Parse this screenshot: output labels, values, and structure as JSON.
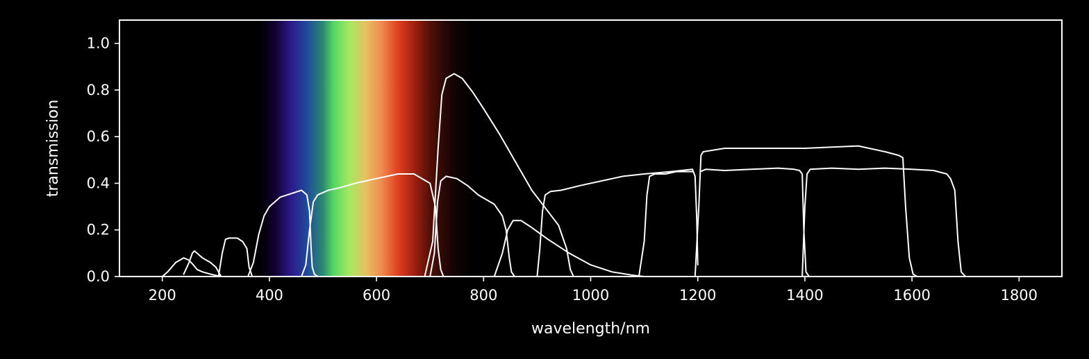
{
  "chart_data": {
    "type": "line",
    "title": "",
    "xlabel": "wavelength/nm",
    "ylabel": "transmission",
    "xlim": [
      120,
      1880
    ],
    "ylim": [
      0.0,
      1.1
    ],
    "xticks": [
      200,
      400,
      600,
      800,
      1000,
      1200,
      1400,
      1600,
      1800
    ],
    "yticks": [
      0.0,
      0.2,
      0.4,
      0.6,
      0.8,
      1.0
    ],
    "grid": false,
    "background": "#000000",
    "line_color": "#ffffff",
    "spectrum_band": {
      "range": [
        380,
        780
      ],
      "stops": [
        {
          "wl": 380,
          "color": "#000000"
        },
        {
          "wl": 410,
          "color": "#120030"
        },
        {
          "wl": 440,
          "color": "#2a1a8a"
        },
        {
          "wl": 470,
          "color": "#1f4a9a"
        },
        {
          "wl": 500,
          "color": "#2a8a70"
        },
        {
          "wl": 520,
          "color": "#55d860"
        },
        {
          "wl": 550,
          "color": "#a8e860"
        },
        {
          "wl": 580,
          "color": "#e8c060"
        },
        {
          "wl": 610,
          "color": "#f08a50"
        },
        {
          "wl": 640,
          "color": "#e04020"
        },
        {
          "wl": 670,
          "color": "#a02010"
        },
        {
          "wl": 700,
          "color": "#501008"
        },
        {
          "wl": 740,
          "color": "#150404"
        },
        {
          "wl": 780,
          "color": "#000000"
        }
      ]
    },
    "series": [
      {
        "x": [
          200,
          210,
          225,
          240,
          250,
          258,
          265,
          275,
          290,
          300,
          305,
          310
        ],
        "y": [
          0.0,
          0.02,
          0.06,
          0.08,
          0.07,
          0.05,
          0.03,
          0.02,
          0.01,
          0.005,
          0.002,
          0.0
        ]
      },
      {
        "x": [
          240,
          250,
          256,
          260,
          265,
          275,
          290,
          300,
          305,
          310
        ],
        "y": [
          0.01,
          0.06,
          0.1,
          0.11,
          0.1,
          0.08,
          0.06,
          0.04,
          0.02,
          0.0
        ]
      },
      {
        "x": [
          305,
          312,
          318,
          325,
          340,
          350,
          358,
          362,
          368
        ],
        "y": [
          0.0,
          0.1,
          0.16,
          0.165,
          0.165,
          0.15,
          0.12,
          0.04,
          0.0
        ]
      },
      {
        "x": [
          360,
          370,
          380,
          390,
          400,
          420,
          440,
          460,
          470,
          475,
          478,
          480,
          484,
          490
        ],
        "y": [
          0.0,
          0.06,
          0.18,
          0.26,
          0.3,
          0.34,
          0.355,
          0.37,
          0.35,
          0.28,
          0.12,
          0.04,
          0.01,
          0.0
        ]
      },
      {
        "x": [
          460,
          468,
          475,
          482,
          490,
          510,
          530,
          560,
          600,
          640,
          670,
          700,
          710,
          715,
          720,
          725
        ],
        "y": [
          0.0,
          0.05,
          0.2,
          0.32,
          0.35,
          0.37,
          0.38,
          0.4,
          0.42,
          0.44,
          0.44,
          0.4,
          0.3,
          0.12,
          0.03,
          0.0
        ]
      },
      {
        "x": [
          700,
          708,
          714,
          720,
          730,
          750,
          770,
          790,
          805,
          820,
          835,
          842,
          848,
          852,
          858
        ],
        "y": [
          0.0,
          0.1,
          0.32,
          0.41,
          0.43,
          0.42,
          0.39,
          0.35,
          0.33,
          0.31,
          0.26,
          0.2,
          0.08,
          0.02,
          0.0
        ]
      },
      {
        "x": [
          690,
          705,
          715,
          722,
          730,
          745,
          760,
          780,
          800,
          830,
          860,
          890,
          920,
          940,
          955,
          962,
          968
        ],
        "y": [
          0.0,
          0.15,
          0.55,
          0.78,
          0.85,
          0.87,
          0.85,
          0.79,
          0.72,
          0.61,
          0.49,
          0.37,
          0.28,
          0.22,
          0.12,
          0.03,
          0.0
        ]
      },
      {
        "x": [
          820,
          835,
          845,
          855,
          870,
          890,
          920,
          960,
          1000,
          1040,
          1080,
          1100
        ],
        "y": [
          0.0,
          0.1,
          0.2,
          0.24,
          0.24,
          0.21,
          0.16,
          0.1,
          0.05,
          0.02,
          0.005,
          0.0
        ]
      },
      {
        "x": [
          900,
          905,
          910,
          915,
          925,
          945,
          980,
          1020,
          1060,
          1100,
          1150,
          1190,
          1195,
          1198,
          1200
        ],
        "y": [
          0.0,
          0.12,
          0.28,
          0.35,
          0.365,
          0.37,
          0.39,
          0.41,
          0.43,
          0.44,
          0.45,
          0.46,
          0.43,
          0.25,
          0.05
        ]
      },
      {
        "x": [
          1090,
          1100,
          1105,
          1110,
          1120,
          1140,
          1160,
          1185,
          1190
        ],
        "y": [
          0.0,
          0.15,
          0.35,
          0.43,
          0.44,
          0.44,
          0.45,
          0.45,
          0.45
        ]
      },
      {
        "x": [
          1195,
          1202,
          1206,
          1210,
          1250,
          1300,
          1350,
          1400,
          1450,
          1500,
          1550,
          1575,
          1583,
          1588,
          1595,
          1602,
          1610
        ],
        "y": [
          0.0,
          0.3,
          0.52,
          0.535,
          0.55,
          0.55,
          0.55,
          0.55,
          0.555,
          0.56,
          0.535,
          0.52,
          0.51,
          0.3,
          0.08,
          0.01,
          0.0
        ]
      },
      {
        "x": [
          1205,
          1215,
          1250,
          1300,
          1350,
          1380,
          1390,
          1395,
          1398,
          1402,
          1408
        ],
        "y": [
          0.45,
          0.46,
          0.455,
          0.46,
          0.465,
          0.46,
          0.455,
          0.44,
          0.2,
          0.02,
          0.0
        ]
      },
      {
        "x": [
          1395,
          1400,
          1404,
          1410,
          1450,
          1500,
          1550,
          1600,
          1640,
          1665,
          1672,
          1680,
          1686,
          1692,
          1700
        ],
        "y": [
          0.0,
          0.3,
          0.44,
          0.46,
          0.465,
          0.46,
          0.465,
          0.46,
          0.455,
          0.44,
          0.42,
          0.37,
          0.15,
          0.02,
          0.0
        ]
      }
    ]
  }
}
